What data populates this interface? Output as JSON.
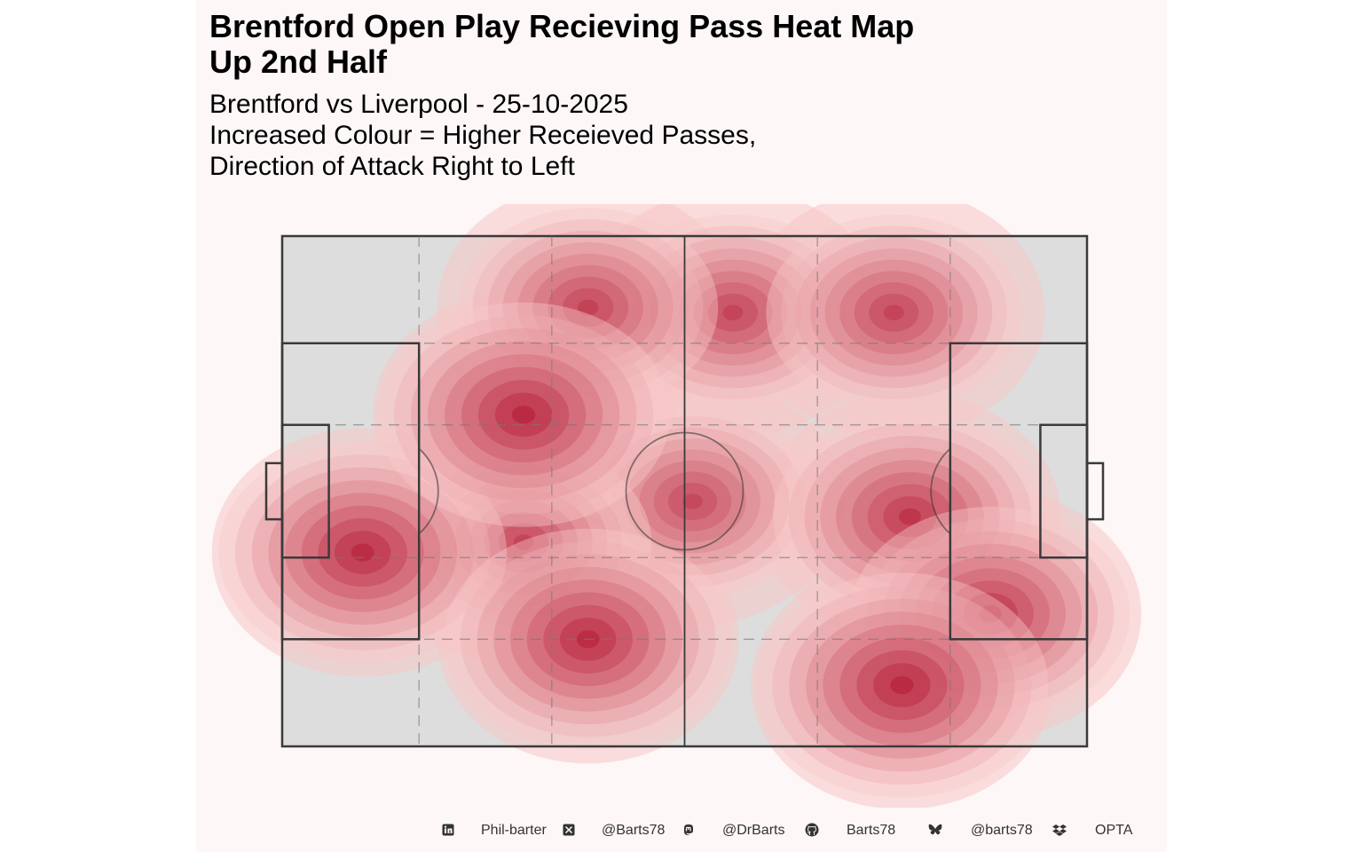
{
  "title": "Brentford Open Play Recieving Pass Heat Map\nUp 2nd Half",
  "subtitle": "Brentford vs Liverpool - 25-10-2025\nIncreased Colour = Higher Receieved Passes,\nDirection of Attack Right to Left",
  "colors": {
    "panel_bg": "#fdf7f7",
    "pitch_fill": "#dddddd",
    "pitch_line": "#3a3a3a",
    "heat_low": "#f7c7c7",
    "heat_high": "#b0102c"
  },
  "footer": {
    "items": [
      {
        "icon": "linkedin-icon",
        "label": "Phil-barter"
      },
      {
        "icon": "x-twitter-icon",
        "label": "@Barts78"
      },
      {
        "icon": "mastodon-icon",
        "label": "@DrBarts"
      },
      {
        "icon": "github-icon",
        "label": "Barts78"
      },
      {
        "icon": "bluesky-icon",
        "label": "@barts78"
      },
      {
        "icon": "dropbox-icon",
        "label": "OPTA"
      }
    ]
  },
  "chart_data": {
    "type": "heatmap",
    "title": "Brentford Open Play Recieving Pass Heat Map Up 2nd Half",
    "subtitle": "Brentford vs Liverpool - 25-10-2025",
    "xlim": [
      0,
      100
    ],
    "ylim": [
      0,
      100
    ],
    "hotspots": [
      {
        "x": 30,
        "y": 65,
        "intensity": 1.0
      },
      {
        "x": 38,
        "y": 86,
        "intensity": 0.65
      },
      {
        "x": 56,
        "y": 85,
        "intensity": 0.6
      },
      {
        "x": 76,
        "y": 85,
        "intensity": 0.6
      },
      {
        "x": 10,
        "y": 38,
        "intensity": 0.95
      },
      {
        "x": 30,
        "y": 40,
        "intensity": 0.6
      },
      {
        "x": 38,
        "y": 21,
        "intensity": 0.95
      },
      {
        "x": 51,
        "y": 48,
        "intensity": 0.55
      },
      {
        "x": 78,
        "y": 45,
        "intensity": 0.8
      },
      {
        "x": 88,
        "y": 26,
        "intensity": 0.85
      },
      {
        "x": 77,
        "y": 12,
        "intensity": 1.0
      }
    ]
  }
}
